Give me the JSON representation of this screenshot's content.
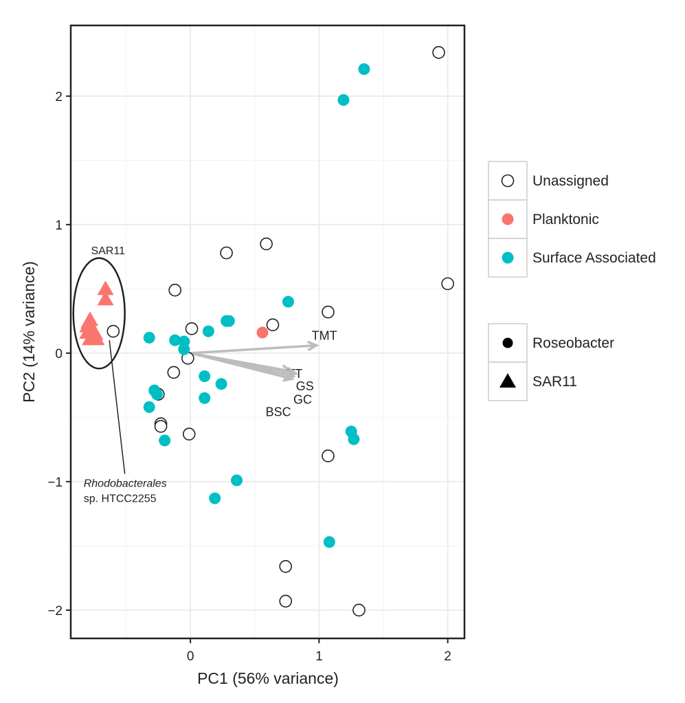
{
  "chart_data": {
    "type": "scatter",
    "xlabel": "PC1 (56% variance)",
    "ylabel": "PC2 (14% variance)",
    "xlim": [
      -0.93,
      2.13
    ],
    "ylim": [
      -2.22,
      2.55
    ],
    "x_ticks": [
      0,
      1,
      2
    ],
    "y_ticks": [
      -2,
      -1,
      0,
      1,
      2
    ],
    "x_tick_labels": [
      "0",
      "1",
      "2"
    ],
    "y_tick_labels": [
      "−2",
      "−1",
      "0",
      "1",
      "2"
    ],
    "grid": true,
    "legend_position": "right",
    "colors": {
      "Unassigned": "#ffffff",
      "Planktonic": "#F8766D",
      "Surface Associated": "#00BFC4",
      "arrow": "#BDBDBD"
    },
    "color_legend": [
      "Unassigned",
      "Planktonic",
      "Surface Associated"
    ],
    "shape_legend": [
      "Roseobacter",
      "SAR11"
    ],
    "series": [
      {
        "name": "Unassigned",
        "shape": "Roseobacter",
        "points": [
          [
            1.93,
            2.34
          ],
          [
            0.59,
            0.85
          ],
          [
            0.28,
            0.78
          ],
          [
            2.0,
            0.54
          ],
          [
            -0.12,
            0.49
          ],
          [
            1.07,
            0.32
          ],
          [
            0.64,
            0.22
          ],
          [
            0.01,
            0.19
          ],
          [
            -0.6,
            0.17
          ],
          [
            -0.02,
            -0.04
          ],
          [
            -0.13,
            -0.15
          ],
          [
            -0.25,
            -0.32
          ],
          [
            -0.23,
            -0.55
          ],
          [
            -0.23,
            -0.57
          ],
          [
            -0.01,
            -0.63
          ],
          [
            1.07,
            -0.8
          ],
          [
            0.74,
            -1.66
          ],
          [
            0.74,
            -1.93
          ],
          [
            1.31,
            -2.0
          ]
        ]
      },
      {
        "name": "Planktonic",
        "shape": "Roseobacter",
        "points": [
          [
            0.56,
            0.16
          ]
        ]
      },
      {
        "name": "Surface Associated",
        "shape": "Roseobacter",
        "points": [
          [
            1.35,
            2.21
          ],
          [
            1.19,
            1.97
          ],
          [
            0.76,
            0.4
          ],
          [
            0.28,
            0.25
          ],
          [
            0.3,
            0.25
          ],
          [
            0.14,
            0.17
          ],
          [
            -0.32,
            0.12
          ],
          [
            -0.12,
            0.1
          ],
          [
            -0.05,
            0.09
          ],
          [
            -0.05,
            0.03
          ],
          [
            0.11,
            -0.18
          ],
          [
            0.24,
            -0.24
          ],
          [
            -0.28,
            -0.29
          ],
          [
            -0.26,
            -0.32
          ],
          [
            0.11,
            -0.35
          ],
          [
            -0.32,
            -0.42
          ],
          [
            1.25,
            -0.61
          ],
          [
            1.27,
            -0.67
          ],
          [
            -0.2,
            -0.68
          ],
          [
            0.36,
            -0.99
          ],
          [
            0.19,
            -1.13
          ],
          [
            1.08,
            -1.47
          ]
        ]
      },
      {
        "name": "Planktonic",
        "shape": "SAR11",
        "points": [
          [
            -0.66,
            0.5
          ],
          [
            -0.66,
            0.42
          ],
          [
            -0.78,
            0.26
          ],
          [
            -0.79,
            0.24
          ],
          [
            -0.8,
            0.21
          ],
          [
            -0.78,
            0.19
          ],
          [
            -0.76,
            0.17
          ],
          [
            -0.8,
            0.16
          ],
          [
            -0.74,
            0.15
          ],
          [
            -0.77,
            0.12
          ],
          [
            -0.74,
            0.12
          ],
          [
            -0.78,
            0.11
          ],
          [
            -0.73,
            0.11
          ]
        ]
      }
    ],
    "loadings": [
      {
        "label": "TMT",
        "x": 0.98,
        "y": 0.06
      },
      {
        "label": "TT",
        "x": 0.78,
        "y": -0.14
      },
      {
        "label": "GS",
        "x": 0.82,
        "y": -0.16
      },
      {
        "label": "GC",
        "x": 0.8,
        "y": -0.18
      },
      {
        "label": "BSC",
        "x": 0.79,
        "y": -0.2
      }
    ],
    "annotations": [
      {
        "text": "SAR11",
        "x": -0.64,
        "y": 0.77
      },
      {
        "text_italic": "Rhodobacterales",
        "text": "sp. HTCC2255",
        "x": -0.83,
        "y": -1.04
      }
    ],
    "ellipse": {
      "cx": -0.71,
      "cy": 0.31,
      "rx": 0.2,
      "ry": 0.43
    },
    "pointer_line": {
      "x1": -0.63,
      "y1": 0.1,
      "x2": -0.51,
      "y2": -0.94
    }
  }
}
